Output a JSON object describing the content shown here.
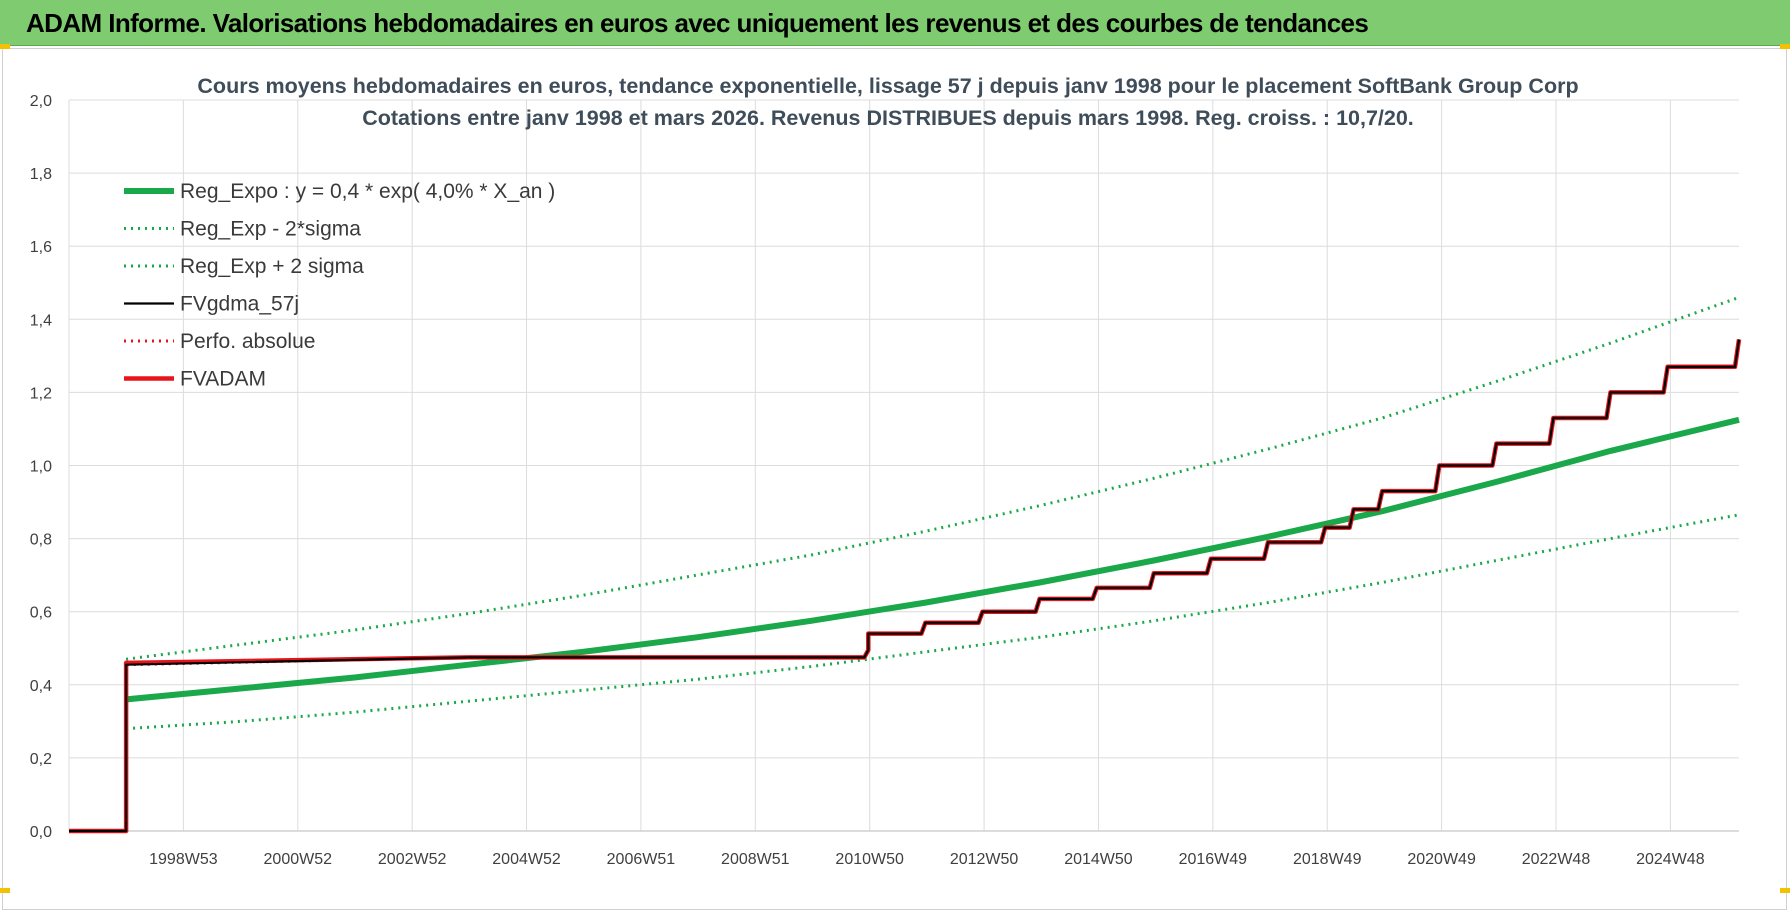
{
  "banner": {
    "title": "ADAM Informe. Valorisations hebdomadaires en euros avec uniquement les revenus et des courbes de tendances"
  },
  "colors": {
    "banner_bg": "#7fcb6f",
    "trend_green": "#1aa84a",
    "price_black": "#000000",
    "adam_red": "#e8141b",
    "grid": "#dcdcdc"
  },
  "chart_data": {
    "type": "line",
    "title": "Cours moyens hebdomadaires en euros, tendance exponentielle, lissage 57 j depuis janv 1998 pour le placement SoftBank Group Corp",
    "subtitle": "Cotations entre janv 1998 et mars 2026. Revenus DISTRIBUES depuis mars 1998. Reg. croiss. : 10,7/20.",
    "xlabel": "",
    "ylabel": "",
    "x_ticks": [
      "1998W53",
      "2000W52",
      "2002W52",
      "2004W52",
      "2006W51",
      "2008W51",
      "2010W50",
      "2012W50",
      "2014W50",
      "2016W49",
      "2018W49",
      "2020W49",
      "2022W48",
      "2024W48"
    ],
    "y_ticks": [
      "0,0",
      "0,2",
      "0,4",
      "0,6",
      "0,8",
      "1,0",
      "1,2",
      "1,4",
      "1,6",
      "1,8",
      "2,0"
    ],
    "xlim": [
      1997.0,
      2026.25
    ],
    "ylim": [
      0,
      2.0
    ],
    "grid": true,
    "legend_position": "top-left",
    "series": [
      {
        "name": "Reg_Expo : y = 0,4 * exp( 4,0% *  X_an )",
        "style": "solid-thick",
        "color": "#1aa84a",
        "x": [
          1998.0,
          2000.0,
          2002.0,
          2004.0,
          2006.0,
          2008.0,
          2010.0,
          2012.0,
          2014.0,
          2016.0,
          2018.0,
          2020.0,
          2022.0,
          2024.0,
          2026.25
        ],
        "values": [
          0.36,
          0.39,
          0.42,
          0.455,
          0.49,
          0.53,
          0.575,
          0.625,
          0.68,
          0.74,
          0.805,
          0.875,
          0.955,
          1.04,
          1.125
        ]
      },
      {
        "name": "Reg_Exp - 2*sigma",
        "style": "dotted",
        "color": "#1aa84a",
        "x": [
          1998.0,
          2000.0,
          2002.0,
          2004.0,
          2006.0,
          2008.0,
          2010.0,
          2012.0,
          2014.0,
          2016.0,
          2018.0,
          2020.0,
          2022.0,
          2024.0,
          2026.25
        ],
        "values": [
          0.28,
          0.3,
          0.325,
          0.355,
          0.385,
          0.415,
          0.45,
          0.49,
          0.53,
          0.575,
          0.625,
          0.68,
          0.74,
          0.8,
          0.865
        ]
      },
      {
        "name": "Reg_Exp + 2 sigma",
        "style": "dotted",
        "color": "#1aa84a",
        "x": [
          1998.0,
          2000.0,
          2002.0,
          2004.0,
          2006.0,
          2008.0,
          2010.0,
          2012.0,
          2014.0,
          2016.0,
          2018.0,
          2020.0,
          2022.0,
          2024.0,
          2026.25
        ],
        "values": [
          0.47,
          0.51,
          0.55,
          0.595,
          0.645,
          0.7,
          0.755,
          0.82,
          0.89,
          0.965,
          1.045,
          1.13,
          1.23,
          1.335,
          1.46
        ]
      },
      {
        "name": "FVgdma_57j",
        "style": "solid-thin",
        "color": "#000000",
        "x": [
          1997.0,
          1998.0,
          1998.0,
          2004.0,
          2011.0,
          2011.0,
          2012.0,
          2013.0,
          2014.0,
          2015.0,
          2016.0,
          2017.0,
          2018.0,
          2019.0,
          2019.5,
          2020.0,
          2021.0,
          2022.0,
          2023.0,
          2024.0,
          2025.0,
          2026.25
        ],
        "values": [
          0.0,
          0.0,
          0.455,
          0.475,
          0.495,
          0.54,
          0.57,
          0.6,
          0.635,
          0.665,
          0.705,
          0.745,
          0.79,
          0.83,
          0.88,
          0.93,
          1.0,
          1.06,
          1.13,
          1.2,
          1.27,
          1.345
        ]
      },
      {
        "name": "Perfo. absolue",
        "style": "dotted",
        "color": "#e8141b",
        "x": [
          1997.0,
          1998.0,
          1998.0,
          2004.0,
          2011.0
        ],
        "values": [
          0.0,
          0.0,
          0.455,
          0.475,
          0.495
        ]
      },
      {
        "name": "FVADAM",
        "style": "solid-thick-stepped",
        "color": "#e8141b",
        "x": [
          1997.0,
          1998.0,
          1998.0,
          2004.0,
          2011.0,
          2011.0,
          2012.0,
          2013.0,
          2014.0,
          2015.0,
          2016.0,
          2017.0,
          2018.0,
          2019.0,
          2019.5,
          2020.0,
          2021.0,
          2022.0,
          2023.0,
          2024.0,
          2025.0,
          2026.25
        ],
        "values": [
          0.0,
          0.0,
          0.46,
          0.475,
          0.495,
          0.54,
          0.57,
          0.6,
          0.635,
          0.665,
          0.705,
          0.745,
          0.79,
          0.83,
          0.88,
          0.93,
          1.0,
          1.06,
          1.13,
          1.2,
          1.27,
          1.345
        ]
      }
    ]
  }
}
